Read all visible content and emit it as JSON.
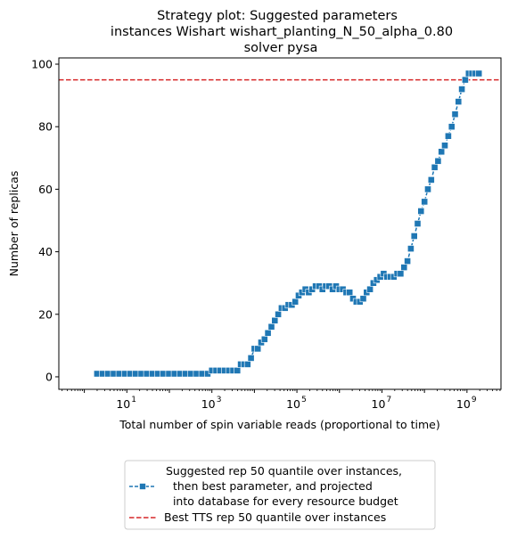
{
  "chart_data": {
    "type": "line",
    "title_lines": [
      "Strategy plot: Suggested parameters",
      "instances Wishart wishart_planting_N_50_alpha_0.80",
      "solver pysa"
    ],
    "xlabel": "Total number of spin variable reads (proportional to time)",
    "ylabel": "Number of replicas",
    "xscale": "log",
    "xlim_log10": [
      -0.6,
      9.8
    ],
    "ylim": [
      -4,
      102
    ],
    "xticks": [
      {
        "log10": 1,
        "label": "10",
        "exp": "1"
      },
      {
        "log10": 3,
        "label": "10",
        "exp": "3"
      },
      {
        "log10": 5,
        "label": "10",
        "exp": "5"
      },
      {
        "log10": 7,
        "label": "10",
        "exp": "7"
      },
      {
        "log10": 9,
        "label": "10",
        "exp": "9"
      }
    ],
    "yticks": [
      0,
      20,
      40,
      60,
      80,
      100
    ],
    "series": [
      {
        "name": "Suggested rep 50 quantile over instances,\n  then best parameter, and projected\n  into database for every resource budget",
        "color": "#1f77b4",
        "marker": "square",
        "linestyle": "dashed",
        "x_log10": [
          0.3,
          0.43,
          0.56,
          0.69,
          0.82,
          0.95,
          1.08,
          1.21,
          1.34,
          1.47,
          1.6,
          1.73,
          1.86,
          1.99,
          2.12,
          2.25,
          2.38,
          2.51,
          2.64,
          2.77,
          2.9,
          3.0,
          3.1,
          3.2,
          3.3,
          3.4,
          3.5,
          3.6,
          3.68,
          3.76,
          3.84,
          3.92,
          4.0,
          4.08,
          4.16,
          4.24,
          4.32,
          4.4,
          4.48,
          4.56,
          4.64,
          4.72,
          4.8,
          4.88,
          4.96,
          5.04,
          5.12,
          5.2,
          5.28,
          5.36,
          5.44,
          5.52,
          5.6,
          5.68,
          5.76,
          5.84,
          5.92,
          6.0,
          6.08,
          6.16,
          6.24,
          6.32,
          6.4,
          6.48,
          6.56,
          6.64,
          6.72,
          6.8,
          6.88,
          6.96,
          7.04,
          7.12,
          7.2,
          7.28,
          7.36,
          7.44,
          7.52,
          7.6,
          7.68,
          7.76,
          7.84,
          7.92,
          8.0,
          8.08,
          8.16,
          8.24,
          8.32,
          8.4,
          8.48,
          8.56,
          8.64,
          8.72,
          8.8,
          8.88,
          8.96,
          9.04,
          9.12,
          9.2,
          9.28
        ],
        "y": [
          1,
          1,
          1,
          1,
          1,
          1,
          1,
          1,
          1,
          1,
          1,
          1,
          1,
          1,
          1,
          1,
          1,
          1,
          1,
          1,
          1,
          2,
          2,
          2,
          2,
          2,
          2,
          2,
          4,
          4,
          4,
          6,
          9,
          9,
          11,
          12,
          14,
          16,
          18,
          20,
          22,
          22,
          23,
          23,
          24,
          26,
          27,
          28,
          27,
          28,
          29,
          29,
          28,
          29,
          29,
          28,
          29,
          28,
          28,
          27,
          27,
          25,
          24,
          24,
          25,
          27,
          28,
          30,
          31,
          32,
          33,
          32,
          32,
          32,
          33,
          33,
          35,
          37,
          41,
          45,
          49,
          53,
          56,
          60,
          63,
          67,
          69,
          72,
          74,
          77,
          80,
          84,
          88,
          92,
          95,
          97,
          97,
          97,
          97
        ]
      },
      {
        "name": "Best TTS rep 50 quantile over instances",
        "color": "#d62728",
        "linestyle": "dashed",
        "y_const": 95
      }
    ],
    "legend_placement": "below-center",
    "grid": false
  }
}
